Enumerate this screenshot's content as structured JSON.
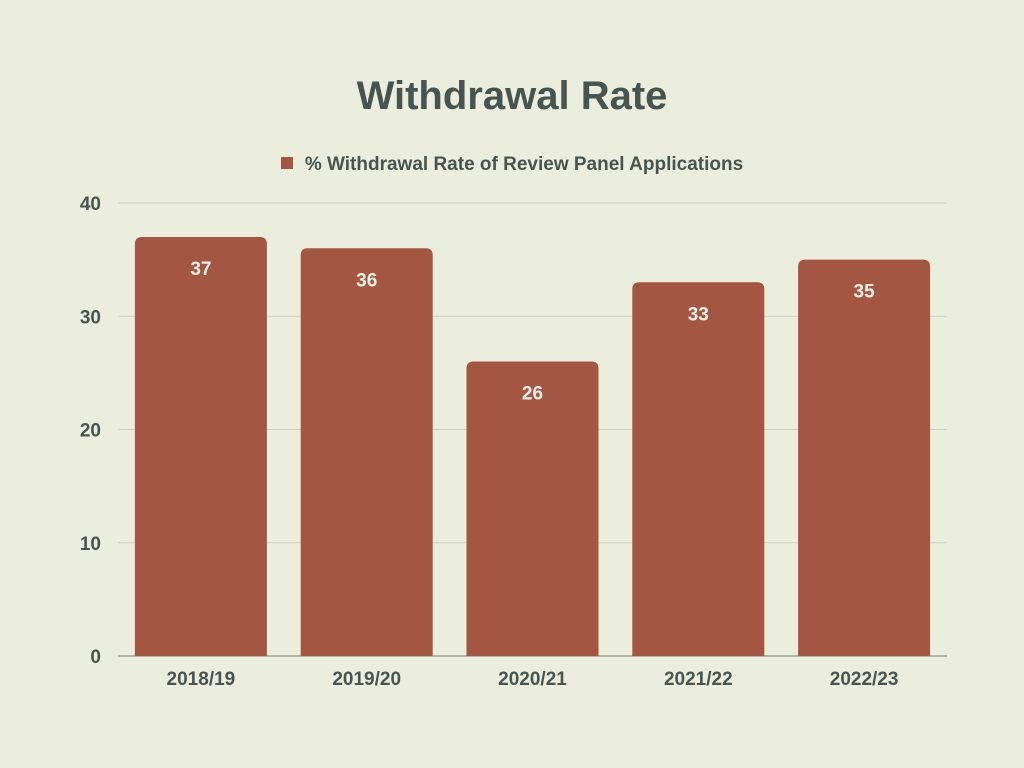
{
  "colors": {
    "background": "#ebeedc",
    "bar": "#a35641",
    "text": "#465550",
    "grid": "#cdd3c0",
    "axis": "#9ca495",
    "data_label": "#f3efe6"
  },
  "chart_data": {
    "type": "bar",
    "title": "Withdrawal Rate",
    "xlabel": "",
    "ylabel": "",
    "categories": [
      "2018/19",
      "2019/20",
      "2020/21",
      "2021/22",
      "2022/23"
    ],
    "series": [
      {
        "name": "% Withdrawal Rate of Review Panel Applications",
        "values": [
          37,
          36,
          26,
          33,
          35
        ]
      }
    ],
    "ylim": [
      0,
      40
    ],
    "yticks": [
      0,
      10,
      20,
      30,
      40
    ],
    "grid": true,
    "legend": "top-center",
    "data_labels": true
  }
}
